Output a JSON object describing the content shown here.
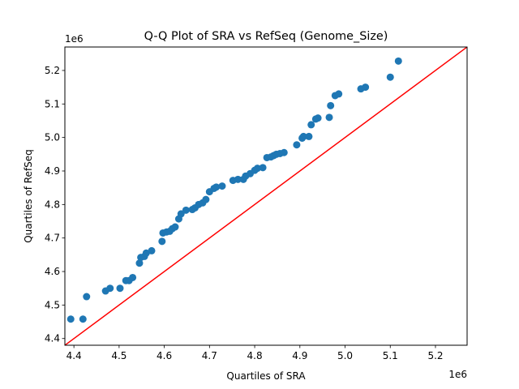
{
  "chart_data": {
    "type": "scatter",
    "title": "Q-Q Plot of SRA vs RefSeq (Genome_Size)",
    "xlabel": "Quartiles of SRA",
    "ylabel": "Quartiles of RefSeq",
    "x_offset_text": "1e6",
    "y_offset_text": "1e6",
    "xlim": [
      4.38,
      5.27
    ],
    "ylim": [
      4.38,
      5.27
    ],
    "x_ticks": [
      4.4,
      4.5,
      4.6,
      4.7,
      4.8,
      4.9,
      5.0,
      5.1,
      5.2
    ],
    "x_tick_labels": [
      "4.4",
      "4.5",
      "4.6",
      "4.7",
      "4.8",
      "4.9",
      "5.0",
      "5.1",
      "5.2"
    ],
    "y_ticks": [
      4.4,
      4.5,
      4.6,
      4.7,
      4.8,
      4.9,
      5.0,
      5.1,
      5.2
    ],
    "y_tick_labels": [
      "4.4",
      "4.5",
      "4.6",
      "4.7",
      "4.8",
      "4.9",
      "5.0",
      "5.1",
      "5.2"
    ],
    "grid": false,
    "marker_color": "#1f77b4",
    "reference_line_color": "#ff0000",
    "reference_line": "y = x",
    "points": [
      [
        4.393,
        4.458
      ],
      [
        4.42,
        4.458
      ],
      [
        4.428,
        4.525
      ],
      [
        4.47,
        4.542
      ],
      [
        4.48,
        4.55
      ],
      [
        4.502,
        4.55
      ],
      [
        4.515,
        4.573
      ],
      [
        4.522,
        4.573
      ],
      [
        4.53,
        4.582
      ],
      [
        4.545,
        4.625
      ],
      [
        4.548,
        4.642
      ],
      [
        4.556,
        4.645
      ],
      [
        4.56,
        4.655
      ],
      [
        4.572,
        4.662
      ],
      [
        4.595,
        4.69
      ],
      [
        4.597,
        4.715
      ],
      [
        4.605,
        4.718
      ],
      [
        4.612,
        4.72
      ],
      [
        4.618,
        4.728
      ],
      [
        4.624,
        4.733
      ],
      [
        4.632,
        4.757
      ],
      [
        4.637,
        4.772
      ],
      [
        4.648,
        4.783
      ],
      [
        4.662,
        4.785
      ],
      [
        4.668,
        4.79
      ],
      [
        4.676,
        4.8
      ],
      [
        4.685,
        4.805
      ],
      [
        4.692,
        4.815
      ],
      [
        4.7,
        4.838
      ],
      [
        4.71,
        4.848
      ],
      [
        4.715,
        4.852
      ],
      [
        4.728,
        4.855
      ],
      [
        4.752,
        4.872
      ],
      [
        4.763,
        4.875
      ],
      [
        4.775,
        4.875
      ],
      [
        4.78,
        4.885
      ],
      [
        4.79,
        4.892
      ],
      [
        4.8,
        4.902
      ],
      [
        4.806,
        4.908
      ],
      [
        4.818,
        4.91
      ],
      [
        4.827,
        4.94
      ],
      [
        4.836,
        4.942
      ],
      [
        4.842,
        4.946
      ],
      [
        4.848,
        4.95
      ],
      [
        4.856,
        4.952
      ],
      [
        4.865,
        4.955
      ],
      [
        4.893,
        4.978
      ],
      [
        4.905,
        4.998
      ],
      [
        4.908,
        5.003
      ],
      [
        4.92,
        5.003
      ],
      [
        4.925,
        5.038
      ],
      [
        4.935,
        5.055
      ],
      [
        4.94,
        5.058
      ],
      [
        4.965,
        5.06
      ],
      [
        4.968,
        5.095
      ],
      [
        4.978,
        5.125
      ],
      [
        4.986,
        5.13
      ],
      [
        5.035,
        5.145
      ],
      [
        5.045,
        5.15
      ],
      [
        5.1,
        5.18
      ],
      [
        5.118,
        5.228
      ]
    ]
  }
}
